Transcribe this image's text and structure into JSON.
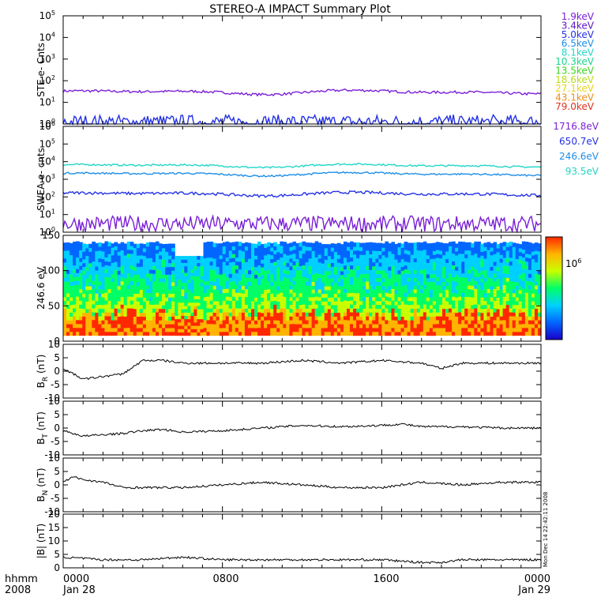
{
  "title": "STEREO-A IMPACT Summary Plot",
  "footer": {
    "left_top": "hhmm",
    "left_bottom": "2008",
    "ticks": [
      "0000",
      "0800",
      "1600",
      "0000"
    ],
    "dates": [
      "Jan 28",
      "Jan 29"
    ]
  },
  "timestamp": "Mon Dec 14 22:42:11 2008",
  "chart_data": [
    {
      "type": "line",
      "ylabel": "STE e- Cnts",
      "yscale": "log",
      "ylim": [
        1,
        100000
      ],
      "yticks": [
        "10",
        "10",
        "10",
        "10",
        "10",
        "10"
      ],
      "yexp": [
        "0",
        "1",
        "2",
        "3",
        "4",
        "5"
      ],
      "legend": [
        {
          "label": "1.9keV",
          "color": "#7a1fd6"
        },
        {
          "label": "3.4keV",
          "color": "#5a14c8"
        },
        {
          "label": "5.0keV",
          "color": "#2331e6"
        },
        {
          "label": "6.5keV",
          "color": "#1e8ee8"
        },
        {
          "label": "8.1keV",
          "color": "#22d6c8"
        },
        {
          "label": "10.3keV",
          "color": "#19d68a"
        },
        {
          "label": "13.5keV",
          "color": "#3ed41c"
        },
        {
          "label": "18.6keV",
          "color": "#b6dc1a"
        },
        {
          "label": "27.1keV",
          "color": "#e8d41a"
        },
        {
          "label": "43.1keV",
          "color": "#f08c14"
        },
        {
          "label": "79.0keV",
          "color": "#e0321e"
        }
      ],
      "series": [
        {
          "label": "1.9keV",
          "color": "#7a1fd6",
          "level": 30,
          "noise": 0.06
        },
        {
          "label": "3.4keV",
          "color": "#2331e6",
          "level": 1.2,
          "noise": 0.35
        }
      ]
    },
    {
      "type": "line",
      "ylabel": "SWEA e- cnts",
      "yscale": "log",
      "ylim": [
        1,
        1000000
      ],
      "yticks": [
        "10",
        "10",
        "10",
        "10",
        "10",
        "10",
        "10"
      ],
      "yexp": [
        "0",
        "1",
        "2",
        "3",
        "4",
        "5",
        "6"
      ],
      "legend": [
        {
          "label": "1716.8eV",
          "color": "#7a1fd6"
        },
        {
          "label": "650.7eV",
          "color": "#2331e6"
        },
        {
          "label": "246.6eV",
          "color": "#1e8ee8"
        },
        {
          "label": "93.5eV",
          "color": "#22d6c8"
        }
      ],
      "series": [
        {
          "label": "93.5eV",
          "color": "#22d6c8",
          "level": 6000,
          "noise": 0.05
        },
        {
          "label": "246.6eV",
          "color": "#1e8ee8",
          "level": 2000,
          "noise": 0.05
        },
        {
          "label": "650.7eV",
          "color": "#2331e6",
          "level": 150,
          "noise": 0.08
        },
        {
          "label": "1716.8eV",
          "color": "#7a1fd6",
          "level": 3,
          "noise": 0.45
        }
      ]
    },
    {
      "type": "heatmap",
      "ylabel": "246.6 eV",
      "ylim": [
        0,
        180
      ],
      "yticks": [
        "0",
        "50",
        "100",
        "150"
      ],
      "colorbar_label": "10",
      "colorbar_exp": "6",
      "colormap": [
        "#1a00c8",
        "#0066ff",
        "#00d0ff",
        "#00ff66",
        "#c8ff00",
        "#ffb400",
        "#ff2800"
      ]
    },
    {
      "type": "line",
      "ylabel": "B",
      "ysub": "R",
      "yunit": "(nT)",
      "ylim": [
        -10,
        10
      ],
      "yticks": [
        "-10",
        "-5",
        "0",
        "5",
        "10"
      ],
      "x_hours": [
        0,
        1,
        2,
        3,
        4,
        5,
        6,
        8,
        10,
        12,
        14,
        16,
        18,
        19,
        20,
        22,
        24
      ],
      "values": [
        1,
        -3,
        -2,
        -1,
        4,
        4,
        3,
        3,
        3,
        4,
        3,
        4,
        3,
        1,
        3,
        3,
        3
      ]
    },
    {
      "type": "line",
      "ylabel": "B",
      "ysub": "T",
      "yunit": "(nT)",
      "ylim": [
        -10,
        10
      ],
      "yticks": [
        "-10",
        "-5",
        "0",
        "5",
        "10"
      ],
      "x_hours": [
        0,
        1,
        2,
        3,
        4,
        5,
        6,
        8,
        10,
        12,
        14,
        16,
        17,
        18,
        20,
        22,
        24
      ],
      "values": [
        -1,
        -3,
        -2.5,
        -2,
        -1,
        -0.5,
        -1.5,
        -1,
        0,
        1,
        0.5,
        1,
        1.5,
        0.5,
        0.5,
        0,
        0
      ]
    },
    {
      "type": "line",
      "ylabel": "B",
      "ysub": "N",
      "yunit": "(nT)",
      "ylim": [
        -10,
        10
      ],
      "yticks": [
        "-10",
        "-5",
        "0",
        "5",
        "10"
      ],
      "x_hours": [
        0,
        0.5,
        1,
        2,
        3,
        4,
        6,
        8,
        10,
        12,
        14,
        16,
        18,
        20,
        22,
        24
      ],
      "values": [
        1,
        3,
        2,
        1,
        -1,
        -1,
        -1,
        0,
        1,
        0,
        -1,
        -1,
        1,
        0,
        1,
        1
      ]
    },
    {
      "type": "line",
      "ylabel": "|B|",
      "yunit": "(nT)",
      "ylim": [
        0,
        20
      ],
      "yticks": [
        "0",
        "5",
        "10",
        "15",
        "20"
      ],
      "x_hours": [
        0,
        2,
        4,
        6,
        8,
        10,
        12,
        14,
        16,
        18,
        19,
        20,
        22,
        24
      ],
      "values": [
        4,
        3,
        3,
        4,
        3,
        3,
        3,
        3,
        3,
        2,
        2,
        3,
        3,
        3
      ]
    }
  ]
}
